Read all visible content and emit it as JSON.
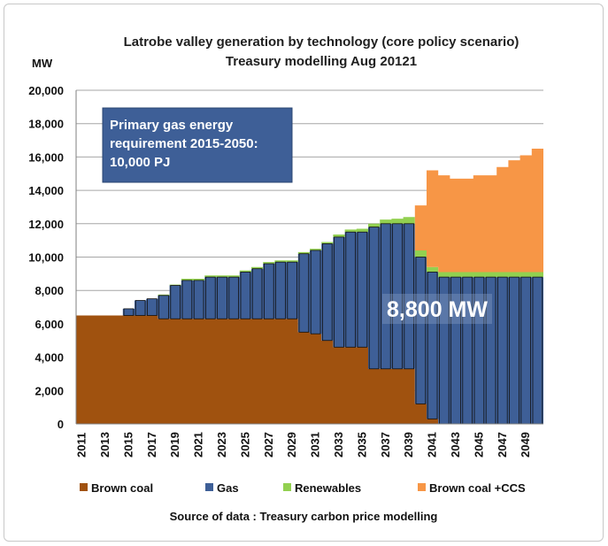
{
  "chart_data": {
    "type": "area",
    "title": [
      "Latrobe valley generation by technology (core policy scenario)",
      "Treasury modelling Aug 20121"
    ],
    "ylabel": "MW",
    "ylim": [
      0,
      20000
    ],
    "yticks": [
      "20,000",
      "18,000",
      "16,000",
      "14,000",
      "12,000",
      "10,000",
      "8,000",
      "6,000",
      "4,000",
      "2,000",
      "0"
    ],
    "ytick_values": [
      20000,
      18000,
      16000,
      14000,
      12000,
      10000,
      8000,
      6000,
      4000,
      2000,
      0
    ],
    "xtick_labels": [
      "2011",
      "2013",
      "2015",
      "2017",
      "2019",
      "2021",
      "2023",
      "2025",
      "2027",
      "2029",
      "2031",
      "2033",
      "2035",
      "2037",
      "2039",
      "2041",
      "2043",
      "2045",
      "2047",
      "2049"
    ],
    "grid": true,
    "legend_position": "bottom",
    "x": [
      2011,
      2012,
      2013,
      2014,
      2015,
      2016,
      2017,
      2018,
      2019,
      2020,
      2021,
      2022,
      2023,
      2024,
      2025,
      2026,
      2027,
      2028,
      2029,
      2030,
      2031,
      2032,
      2033,
      2034,
      2035,
      2036,
      2037,
      2038,
      2039,
      2040,
      2041,
      2042,
      2043,
      2044,
      2045,
      2046,
      2047,
      2048,
      2049,
      2050
    ],
    "series": [
      {
        "name": "Brown coal",
        "color": "#a0520f",
        "values": [
          6500,
          6500,
          6500,
          6500,
          6500,
          6500,
          6500,
          6300,
          6300,
          6300,
          6300,
          6300,
          6300,
          6300,
          6300,
          6300,
          6300,
          6300,
          6300,
          5500,
          5400,
          5000,
          4600,
          4600,
          4600,
          3300,
          3300,
          3300,
          3300,
          1200,
          300,
          0,
          0,
          0,
          0,
          0,
          0,
          0,
          0,
          0
        ]
      },
      {
        "name": "Gas",
        "color": "#3e5f97",
        "values": [
          0,
          0,
          0,
          0,
          400,
          900,
          1000,
          1400,
          2000,
          2300,
          2300,
          2500,
          2500,
          2500,
          2800,
          3000,
          3300,
          3400,
          3400,
          4700,
          5000,
          5800,
          6600,
          6900,
          6900,
          8500,
          8700,
          8700,
          8700,
          8800,
          8800,
          8800,
          8800,
          8800,
          8800,
          8800,
          8800,
          8800,
          8800,
          8800
        ]
      },
      {
        "name": "Renewables",
        "color": "#92d050",
        "values": [
          0,
          0,
          0,
          0,
          0,
          0,
          0,
          50,
          50,
          100,
          100,
          100,
          100,
          100,
          100,
          100,
          100,
          100,
          100,
          100,
          100,
          100,
          150,
          150,
          200,
          200,
          250,
          300,
          400,
          400,
          300,
          300,
          300,
          300,
          300,
          300,
          300,
          300,
          300,
          300
        ]
      },
      {
        "name": "Brown coal +CCS",
        "color": "#f79646",
        "values": [
          0,
          0,
          0,
          0,
          0,
          0,
          0,
          0,
          0,
          0,
          0,
          0,
          0,
          0,
          0,
          0,
          0,
          0,
          0,
          0,
          0,
          0,
          0,
          0,
          0,
          0,
          0,
          0,
          0,
          2700,
          5800,
          5800,
          5600,
          5600,
          5800,
          5800,
          6300,
          6700,
          7000,
          7400
        ]
      }
    ],
    "annotations": [
      {
        "text": [
          "Primary gas energy",
          "requirement 2015-2050:",
          "10,000 PJ"
        ]
      },
      {
        "text": "8,800 MW"
      }
    ],
    "source": "Source of data : Treasury carbon price modelling"
  }
}
